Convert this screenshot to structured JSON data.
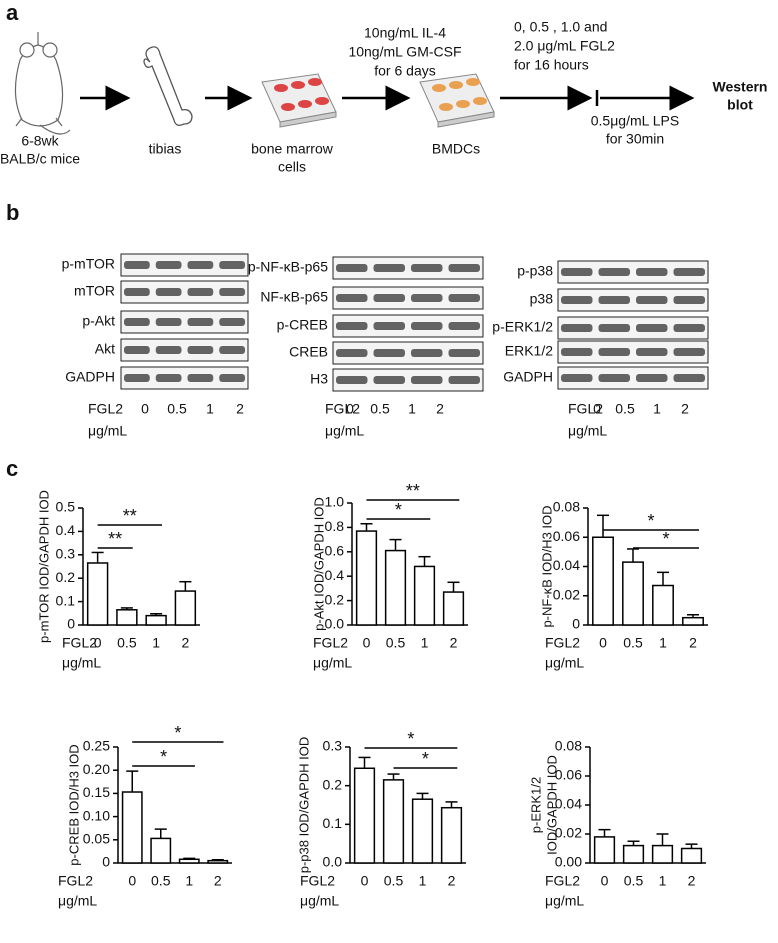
{
  "panel_labels": [
    "a",
    "b",
    "c"
  ],
  "workflow": {
    "mice": [
      "6-8wk",
      "BALB/c mice"
    ],
    "tibias": "tibias",
    "cells": [
      "bone marrow",
      "cells"
    ],
    "culture": [
      "10ng/mL IL-4",
      "10ng/mL GM-CSF",
      "for 6 days"
    ],
    "bmdcs": "BMDCs",
    "treatment": [
      "0, 0.5 , 1.0  and",
      "2.0 μg/mL FGL2",
      "for 16 hours"
    ],
    "stimulation": [
      "0.5μg/mL LPS",
      "for 30min"
    ],
    "readout": [
      "Western",
      "blot"
    ]
  },
  "blots": [
    {
      "proteins": [
        "p-mTOR",
        "mTOR",
        "p-Akt",
        "Akt",
        "GADPH"
      ],
      "xlabel": [
        "FGL2",
        "μg/mL"
      ],
      "lanes": [
        "0",
        "0.5",
        "1",
        "2"
      ]
    },
    {
      "proteins": [
        "p-NF-κB-p65",
        "NF-κB-p65",
        "p-CREB",
        "CREB",
        "H3"
      ],
      "xlabel": [
        "FGL2",
        "μg/mL"
      ],
      "lanes": [
        "0",
        "0.5",
        "1",
        "2"
      ]
    },
    {
      "proteins": [
        "p-p38",
        "p38",
        "p-ERK1/2",
        "ERK1/2",
        "GADPH"
      ],
      "xlabel": [
        "FGL2",
        "μg/mL"
      ],
      "lanes": [
        "0",
        "0.5",
        "1",
        "2"
      ]
    }
  ],
  "chart_data": [
    {
      "type": "bar",
      "ylabel": [
        "p-mTOR IOD/GAPDH IOD"
      ],
      "xlabel": [
        "FGL2",
        "μg/mL"
      ],
      "categories": [
        "0",
        "0.5",
        "1",
        "2"
      ],
      "values": [
        0.265,
        0.065,
        0.04,
        0.145
      ],
      "errors": [
        0.045,
        0.008,
        0.008,
        0.04
      ],
      "ylim": [
        0,
        0.5
      ],
      "yticks": [
        0,
        0.1,
        0.2,
        0.3,
        0.4,
        0.5
      ],
      "color": "#ffffff",
      "significance": [
        {
          "pair": [
            0,
            2
          ],
          "label": "**"
        },
        {
          "pair": [
            0,
            1
          ],
          "label": "**"
        }
      ]
    },
    {
      "type": "bar",
      "ylabel": [
        "p-Akt IOD/GAPDH IOD"
      ],
      "xlabel": [
        "FGL2",
        "μg/mL"
      ],
      "categories": [
        "0",
        "0.5",
        "1",
        "2"
      ],
      "values": [
        0.77,
        0.61,
        0.48,
        0.27
      ],
      "errors": [
        0.06,
        0.09,
        0.08,
        0.08
      ],
      "ylim": [
        0,
        1
      ],
      "yticks": [
        {
          "value": 0,
          "label": "0.0"
        },
        0.2,
        0.4,
        0.6,
        0.8,
        {
          "value": 1,
          "label": "1.0"
        }
      ],
      "color": "#ffffff",
      "significance": [
        {
          "pair": [
            0,
            3
          ],
          "label": "**"
        },
        {
          "pair": [
            0,
            2
          ],
          "label": "*"
        }
      ]
    },
    {
      "type": "bar",
      "ylabel": [
        "p-NF-κB IOD/H3 IOD"
      ],
      "xlabel": [
        "FGL2",
        "μg/mL"
      ],
      "categories": [
        "0",
        "0.5",
        "1",
        "2"
      ],
      "values": [
        0.06,
        0.043,
        0.027,
        0.005
      ],
      "errors": [
        0.015,
        0.009,
        0.009,
        0.002
      ],
      "ylim": [
        0,
        0.08
      ],
      "yticks": [
        0,
        0.02,
        0.04,
        0.06,
        0.08
      ],
      "color": "#ffffff",
      "significance": [
        {
          "pair": [
            0,
            3
          ],
          "label": "*"
        },
        {
          "pair": [
            1,
            3
          ],
          "label": "*"
        }
      ]
    },
    {
      "type": "bar",
      "ylabel": [
        "p-CREB IOD/H3 IOD"
      ],
      "xlabel": [
        "FGL2",
        "μg/mL"
      ],
      "categories": [
        "0",
        "0.5",
        "1",
        "2"
      ],
      "values": [
        0.153,
        0.053,
        0.008,
        0.005
      ],
      "errors": [
        0.045,
        0.02,
        0.002,
        0.002
      ],
      "ylim": [
        0,
        0.25
      ],
      "yticks": [
        0,
        {
          "value": 0.05,
          "label": "0.05"
        },
        {
          "value": 0.1,
          "label": "0.10"
        },
        0.15,
        {
          "value": 0.2,
          "label": "0.20"
        },
        0.25
      ],
      "color": "#ffffff",
      "significance": [
        {
          "pair": [
            0,
            3
          ],
          "label": "*"
        },
        {
          "pair": [
            0,
            2
          ],
          "label": "*"
        }
      ]
    },
    {
      "type": "bar",
      "ylabel": [
        "p-p38 IOD/GAPDH IOD"
      ],
      "xlabel": [
        "FGL2",
        "μg/mL"
      ],
      "categories": [
        "0",
        "0.5",
        "1",
        "2"
      ],
      "values": [
        0.245,
        0.215,
        0.165,
        0.143
      ],
      "errors": [
        0.028,
        0.015,
        0.015,
        0.015
      ],
      "ylim": [
        0,
        0.3
      ],
      "yticks": [
        {
          "value": 0,
          "label": "0.0"
        },
        0.1,
        0.2,
        0.3
      ],
      "color": "#ffffff",
      "significance": [
        {
          "pair": [
            0,
            3
          ],
          "label": "*"
        },
        {
          "pair": [
            1,
            3
          ],
          "label": "*"
        }
      ]
    },
    {
      "type": "bar",
      "ylabel": [
        "p-ERK1/2",
        "IOD/GAPDH IOD"
      ],
      "xlabel": [
        "FGL2",
        "μg/mL"
      ],
      "categories": [
        "0",
        "0.5",
        "1",
        "2"
      ],
      "values": [
        0.018,
        0.012,
        0.012,
        0.01
      ],
      "errors": [
        0.005,
        0.003,
        0.008,
        0.003
      ],
      "ylim": [
        0,
        0.08
      ],
      "yticks": [
        {
          "value": 0,
          "label": "0.00"
        },
        0.02,
        0.04,
        0.06,
        0.08
      ],
      "color": "#ffffff",
      "significance": []
    }
  ]
}
